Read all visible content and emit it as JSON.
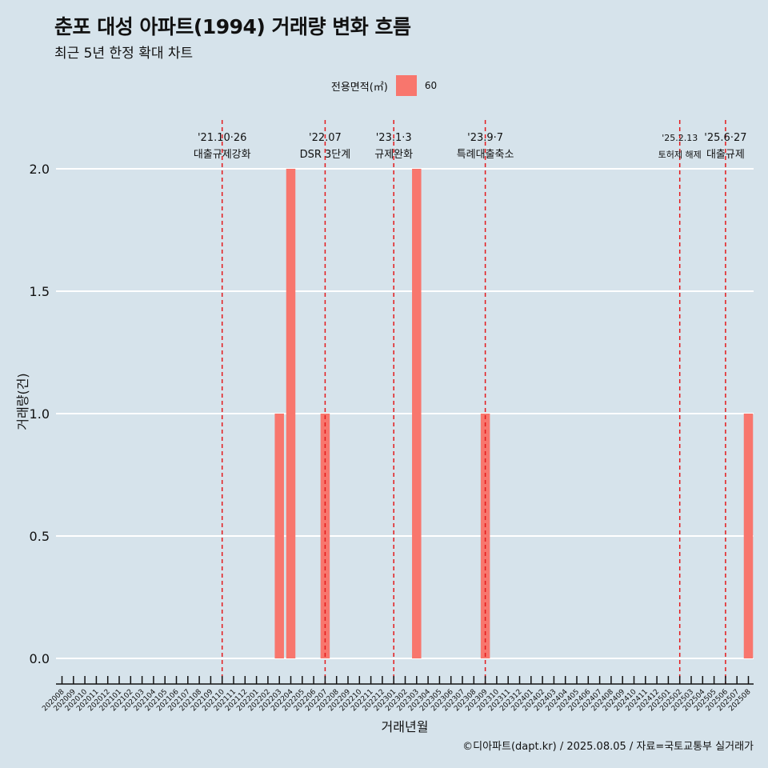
{
  "header": {
    "title": "춘포 대성 아파트(1994) 거래량 변화 흐름",
    "subtitle": "최근 5년 한정 확대 차트"
  },
  "legend": {
    "title": "전용면적(㎡)",
    "items": [
      {
        "label": "60",
        "color": "#f8766d"
      }
    ]
  },
  "caption": "©디아파트(dapt.kr) / 2025.08.05 / 자료=국토교통부 실거래가",
  "chart_data": {
    "type": "bar",
    "title": "춘포 대성 아파트(1994) 거래량 변화 흐름",
    "subtitle": "최근 5년 한정 확대 차트",
    "xlabel": "거래년월",
    "ylabel": "거래량(건)",
    "ylim": [
      0,
      2
    ],
    "yticks": [
      "0.0",
      "0.5",
      "1.0",
      "1.5",
      "2.0"
    ],
    "grid": true,
    "legend_position": "top",
    "bar_color": "#f8766d",
    "categories": [
      "202008",
      "202009",
      "202010",
      "202011",
      "202012",
      "202101",
      "202102",
      "202103",
      "202104",
      "202105",
      "202106",
      "202107",
      "202108",
      "202109",
      "202110",
      "202111",
      "202112",
      "202201",
      "202202",
      "202203",
      "202204",
      "202205",
      "202206",
      "202207",
      "202208",
      "202209",
      "202210",
      "202211",
      "202212",
      "202301",
      "202302",
      "202303",
      "202304",
      "202305",
      "202306",
      "202307",
      "202308",
      "202309",
      "202310",
      "202311",
      "202312",
      "202401",
      "202402",
      "202403",
      "202404",
      "202405",
      "202406",
      "202407",
      "202408",
      "202409",
      "202410",
      "202411",
      "202412",
      "202501",
      "202502",
      "202503",
      "202504",
      "202505",
      "202506",
      "202507",
      "202508"
    ],
    "series": [
      {
        "name": "60",
        "points": [
          {
            "x": "202203",
            "y": 1
          },
          {
            "x": "202204",
            "y": 2
          },
          {
            "x": "202207",
            "y": 1
          },
          {
            "x": "202303",
            "y": 2
          },
          {
            "x": "202309",
            "y": 1
          },
          {
            "x": "202508",
            "y": 1
          }
        ]
      }
    ],
    "annotations": [
      {
        "x": "202110",
        "date": "'21.10·26",
        "text": "대출규제강화"
      },
      {
        "x": "202207",
        "date": "'22.07",
        "text": "DSR 3단계"
      },
      {
        "x": "202301",
        "date": "'23.1·3",
        "text": "규제완화"
      },
      {
        "x": "202309",
        "date": "'23.9·7",
        "text": "특례대출축소"
      },
      {
        "x": "202502",
        "date": "'25.2.13",
        "text": "토허제 해제"
      },
      {
        "x": "202506",
        "date": "'25.6·27",
        "text": "대출규제"
      }
    ],
    "annotation_color": "#e41a1c"
  }
}
